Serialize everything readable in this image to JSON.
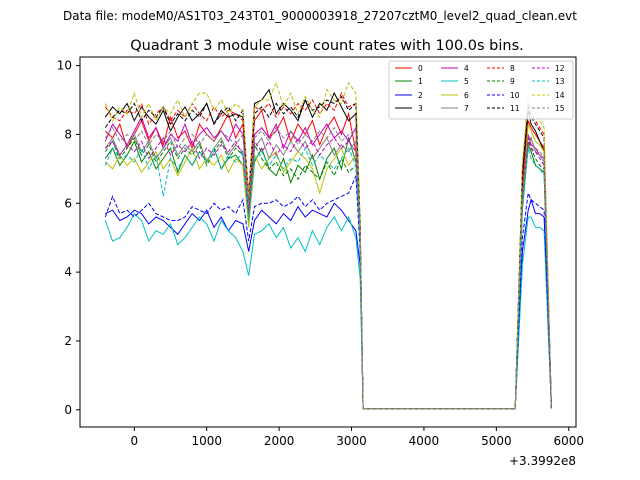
{
  "figure_header": "Data file: modeM0/AS1T03_243T01_9000003918_27207cztM0_level2_quad_clean.evt",
  "chart_data": {
    "type": "line",
    "title": "Quadrant 3 module wise count rates with 100.0s bins.",
    "xlabel": "",
    "ylabel": "",
    "x_offset_label": "+3.3992e8",
    "xlim": [
      -750,
      6100
    ],
    "ylim": [
      -0.5,
      10.25
    ],
    "x_ticks": [
      0,
      1000,
      2000,
      3000,
      4000,
      5000,
      6000
    ],
    "x_tick_labels": [
      "0",
      "1000",
      "2000",
      "3000",
      "4000",
      "5000",
      "6000"
    ],
    "y_ticks": [
      0,
      2,
      4,
      6,
      8,
      10
    ],
    "y_tick_labels": [
      "0",
      "2",
      "4",
      "6",
      "8",
      "10"
    ],
    "grid": false,
    "legend_position": "top-right",
    "legend_columns": 4,
    "x": [
      -400,
      -300,
      -200,
      -100,
      0,
      100,
      200,
      300,
      400,
      500,
      600,
      700,
      800,
      900,
      1000,
      1100,
      1200,
      1300,
      1400,
      1500,
      1580,
      1660,
      1760,
      1860,
      1960,
      2060,
      2160,
      2260,
      2360,
      2460,
      2560,
      2660,
      2760,
      2860,
      2960,
      3060,
      3120,
      3160,
      5260,
      5360,
      5440,
      5480,
      5540,
      5600,
      5660,
      5760
    ],
    "series": [
      {
        "name": "0",
        "color": "#ff0000",
        "dash": "solid",
        "values": [
          8.1,
          7.9,
          8.3,
          7.6,
          8.0,
          8.4,
          7.8,
          8.2,
          7.7,
          8.5,
          7.9,
          8.1,
          7.6,
          8.3,
          8.0,
          7.8,
          8.2,
          8.6,
          7.9,
          8.3,
          6.2,
          8.4,
          8.7,
          7.9,
          8.1,
          8.5,
          7.8,
          8.3,
          8.0,
          8.4,
          7.7,
          8.2,
          8.5,
          8.0,
          8.6,
          7.5,
          5.0,
          0.03,
          0.03,
          6.5,
          8.4,
          8.2,
          8.0,
          7.8,
          7.6,
          0.05
        ]
      },
      {
        "name": "1",
        "color": "#008000",
        "dash": "solid",
        "values": [
          7.3,
          7.6,
          7.1,
          7.4,
          7.8,
          7.2,
          7.5,
          7.0,
          7.3,
          7.6,
          6.9,
          7.4,
          7.1,
          7.5,
          7.2,
          7.6,
          7.0,
          7.3,
          7.4,
          7.1,
          5.4,
          7.2,
          7.6,
          7.0,
          6.8,
          7.3,
          6.6,
          7.1,
          6.9,
          7.4,
          6.7,
          7.3,
          7.6,
          7.0,
          7.9,
          7.2,
          4.9,
          0.03,
          0.03,
          5.8,
          7.7,
          7.5,
          7.1,
          7.0,
          6.9,
          0.05
        ]
      },
      {
        "name": "2",
        "color": "#0000ff",
        "dash": "solid",
        "values": [
          5.7,
          5.8,
          5.5,
          5.6,
          5.8,
          5.7,
          5.4,
          5.6,
          5.5,
          5.3,
          5.1,
          5.4,
          5.7,
          5.5,
          5.8,
          5.3,
          5.6,
          5.2,
          5.5,
          5.4,
          4.6,
          5.5,
          5.8,
          5.6,
          5.4,
          5.7,
          5.5,
          5.9,
          5.6,
          5.8,
          5.7,
          5.6,
          6.0,
          5.8,
          5.5,
          5.2,
          4.2,
          0.03,
          0.03,
          4.6,
          5.8,
          6.1,
          5.7,
          5.7,
          5.6,
          0.05
        ]
      },
      {
        "name": "3",
        "color": "#000000",
        "dash": "solid",
        "values": [
          8.5,
          8.8,
          8.6,
          8.9,
          8.4,
          8.8,
          8.5,
          8.3,
          8.7,
          8.1,
          8.5,
          8.8,
          8.4,
          8.6,
          8.9,
          8.3,
          8.7,
          8.5,
          8.6,
          8.5,
          6.1,
          8.9,
          9.0,
          9.3,
          8.6,
          8.9,
          8.7,
          8.4,
          9.0,
          8.5,
          8.9,
          8.7,
          9.2,
          8.8,
          8.4,
          8.6,
          5.3,
          0.03,
          0.03,
          6.8,
          8.7,
          8.3,
          8.1,
          7.8,
          7.5,
          0.05
        ]
      },
      {
        "name": "4",
        "color": "#c000c0",
        "dash": "solid",
        "values": [
          7.8,
          8.3,
          8.0,
          7.7,
          8.1,
          8.5,
          7.9,
          8.2,
          7.6,
          8.0,
          7.8,
          8.3,
          7.7,
          8.0,
          8.2,
          7.9,
          8.1,
          7.8,
          8.3,
          8.0,
          6.0,
          8.0,
          8.2,
          7.9,
          8.3,
          7.6,
          8.1,
          7.8,
          8.2,
          7.7,
          8.0,
          8.3,
          7.9,
          8.1,
          7.8,
          8.2,
          5.1,
          0.03,
          0.03,
          6.2,
          8.0,
          7.7,
          7.6,
          7.4,
          7.3,
          0.05
        ]
      },
      {
        "name": "5",
        "color": "#00bfbf",
        "dash": "solid",
        "values": [
          5.5,
          4.9,
          5.0,
          5.3,
          5.7,
          5.5,
          4.9,
          5.2,
          5.1,
          5.4,
          4.8,
          5.0,
          5.3,
          5.6,
          5.4,
          4.9,
          5.5,
          5.2,
          5.0,
          4.6,
          3.9,
          5.1,
          5.2,
          5.4,
          5.0,
          5.3,
          4.7,
          5.0,
          4.6,
          5.2,
          4.8,
          5.3,
          5.6,
          5.2,
          5.6,
          5.0,
          3.8,
          0.03,
          0.03,
          4.2,
          5.6,
          5.6,
          5.3,
          5.3,
          5.2,
          0.05
        ]
      },
      {
        "name": "6",
        "color": "#bfbf00",
        "dash": "solid",
        "values": [
          7.2,
          7.0,
          7.4,
          7.1,
          7.3,
          6.9,
          7.2,
          7.5,
          7.0,
          7.3,
          6.8,
          7.2,
          7.6,
          7.0,
          7.3,
          7.1,
          7.4,
          6.9,
          7.3,
          7.1,
          5.3,
          7.4,
          7.0,
          7.3,
          7.5,
          6.9,
          7.2,
          7.5,
          7.3,
          7.0,
          6.3,
          7.0,
          7.3,
          7.6,
          7.1,
          7.4,
          4.8,
          0.03,
          0.03,
          6.0,
          8.3,
          8.1,
          7.8,
          7.7,
          7.5,
          0.05
        ]
      },
      {
        "name": "7",
        "color": "#808080",
        "dash": "solid",
        "values": [
          7.6,
          7.9,
          7.4,
          7.7,
          8.0,
          7.5,
          7.8,
          7.3,
          7.6,
          7.9,
          7.4,
          7.7,
          7.5,
          7.8,
          7.2,
          7.6,
          7.9,
          7.4,
          7.7,
          7.5,
          5.8,
          7.6,
          7.9,
          7.3,
          7.7,
          7.4,
          7.8,
          7.5,
          7.8,
          7.3,
          7.6,
          7.9,
          7.4,
          7.7,
          7.5,
          7.8,
          5.0,
          0.03,
          0.03,
          6.1,
          7.6,
          7.9,
          7.5,
          7.4,
          7.2,
          0.05
        ]
      },
      {
        "name": "8",
        "color": "#ff0000",
        "dash": "dashed",
        "values": [
          8.8,
          8.5,
          8.4,
          8.7,
          8.6,
          8.9,
          8.3,
          8.6,
          8.8,
          8.4,
          8.7,
          8.5,
          8.9,
          8.6,
          8.4,
          8.8,
          8.5,
          8.7,
          8.6,
          8.4,
          6.3,
          8.8,
          8.7,
          8.9,
          8.5,
          8.8,
          8.6,
          8.9,
          8.7,
          9.0,
          8.6,
          8.9,
          8.7,
          9.2,
          8.8,
          8.9,
          5.2,
          0.03,
          0.03,
          7.0,
          8.9,
          8.6,
          8.4,
          8.2,
          8.0,
          0.05
        ]
      },
      {
        "name": "9",
        "color": "#008000",
        "dash": "dashed",
        "values": [
          7.5,
          7.8,
          7.3,
          7.6,
          7.9,
          7.4,
          7.7,
          7.2,
          7.5,
          7.8,
          7.3,
          7.6,
          7.4,
          7.7,
          7.1,
          7.5,
          7.8,
          7.3,
          7.6,
          7.4,
          5.6,
          7.7,
          7.3,
          7.0,
          7.2,
          6.8,
          7.0,
          6.7,
          7.1,
          6.9,
          6.7,
          7.2,
          6.8,
          7.3,
          6.9,
          7.1,
          4.9,
          0.03,
          0.03,
          6.0,
          7.8,
          7.6,
          7.3,
          7.1,
          7.0,
          0.05
        ]
      },
      {
        "name": "10",
        "color": "#0000ff",
        "dash": "dashed",
        "values": [
          5.6,
          6.2,
          5.7,
          5.8,
          5.6,
          5.8,
          6.0,
          5.7,
          5.6,
          5.5,
          5.5,
          5.6,
          5.9,
          5.8,
          5.7,
          6.0,
          5.8,
          5.9,
          5.7,
          6.1,
          4.9,
          5.9,
          6.0,
          6.0,
          6.1,
          5.9,
          6.0,
          6.2,
          5.9,
          6.1,
          5.8,
          6.0,
          6.1,
          6.2,
          6.3,
          6.8,
          4.6,
          0.03,
          0.03,
          5.0,
          6.3,
          6.1,
          6.0,
          5.9,
          5.8,
          0.05
        ]
      },
      {
        "name": "11",
        "color": "#000000",
        "dash": "dashed",
        "values": [
          8.2,
          8.5,
          8.7,
          8.6,
          8.9,
          8.4,
          8.7,
          8.5,
          8.8,
          8.3,
          8.6,
          8.4,
          8.7,
          8.5,
          8.9,
          8.3,
          8.6,
          8.8,
          8.4,
          8.7,
          6.1,
          8.6,
          8.8,
          8.5,
          8.9,
          8.6,
          8.8,
          8.5,
          9.0,
          8.7,
          8.8,
          9.0,
          8.9,
          9.1,
          8.7,
          8.9,
          5.4,
          0.03,
          0.03,
          6.9,
          8.8,
          8.5,
          8.3,
          8.1,
          7.9,
          0.05
        ]
      },
      {
        "name": "12",
        "color": "#c000c0",
        "dash": "dashed",
        "values": [
          7.6,
          7.8,
          7.4,
          7.7,
          7.5,
          7.8,
          7.3,
          7.6,
          7.9,
          7.4,
          7.7,
          7.5,
          7.8,
          7.3,
          7.6,
          7.4,
          7.7,
          7.5,
          7.8,
          7.4,
          5.7,
          7.8,
          7.5,
          7.8,
          7.4,
          7.7,
          7.5,
          7.9,
          7.6,
          7.8,
          7.4,
          7.7,
          7.9,
          7.6,
          7.8,
          7.5,
          5.0,
          0.03,
          0.03,
          6.3,
          7.9,
          7.6,
          7.5,
          7.3,
          7.1,
          0.05
        ]
      },
      {
        "name": "13",
        "color": "#00bfbf",
        "dash": "dashed",
        "values": [
          7.1,
          7.6,
          7.3,
          7.4,
          7.2,
          7.6,
          7.0,
          7.4,
          6.2,
          7.3,
          7.0,
          7.4,
          7.1,
          7.5,
          7.2,
          7.6,
          7.0,
          7.4,
          7.2,
          7.5,
          5.5,
          7.3,
          7.5,
          7.1,
          7.4,
          7.0,
          7.3,
          7.2,
          7.6,
          7.1,
          7.4,
          7.2,
          7.0,
          7.3,
          7.6,
          7.1,
          4.8,
          0.03,
          0.03,
          5.9,
          7.6,
          7.3,
          7.1,
          7.0,
          6.8,
          0.05
        ]
      },
      {
        "name": "14",
        "color": "#bfbf00",
        "dash": "dashed",
        "values": [
          8.9,
          8.4,
          8.8,
          8.6,
          9.2,
          8.5,
          8.9,
          8.4,
          8.8,
          8.6,
          9.0,
          8.5,
          8.9,
          9.2,
          9.2,
          8.7,
          9.0,
          8.6,
          8.9,
          8.7,
          6.2,
          8.8,
          9.0,
          9.0,
          9.5,
          8.8,
          9.2,
          8.6,
          9.1,
          8.7,
          8.5,
          9.3,
          9.0,
          8.9,
          9.5,
          9.2,
          5.5,
          0.03,
          0.03,
          7.2,
          9.1,
          8.8,
          8.6,
          8.4,
          8.2,
          0.05
        ]
      },
      {
        "name": "15",
        "color": "#808080",
        "dash": "dashed",
        "values": [
          7.9,
          8.2,
          7.8,
          8.0,
          7.8,
          8.1,
          7.7,
          8.0,
          7.8,
          8.1,
          7.6,
          7.9,
          8.0,
          7.7,
          8.0,
          7.8,
          8.1,
          7.9,
          7.7,
          8.0,
          6.0,
          7.9,
          8.1,
          7.8,
          8.2,
          7.9,
          8.1,
          7.7,
          8.0,
          7.8,
          8.1,
          7.9,
          8.2,
          7.8,
          8.0,
          8.1,
          5.1,
          0.03,
          0.03,
          6.2,
          8.0,
          7.8,
          7.6,
          7.5,
          7.3,
          0.05
        ]
      }
    ]
  }
}
